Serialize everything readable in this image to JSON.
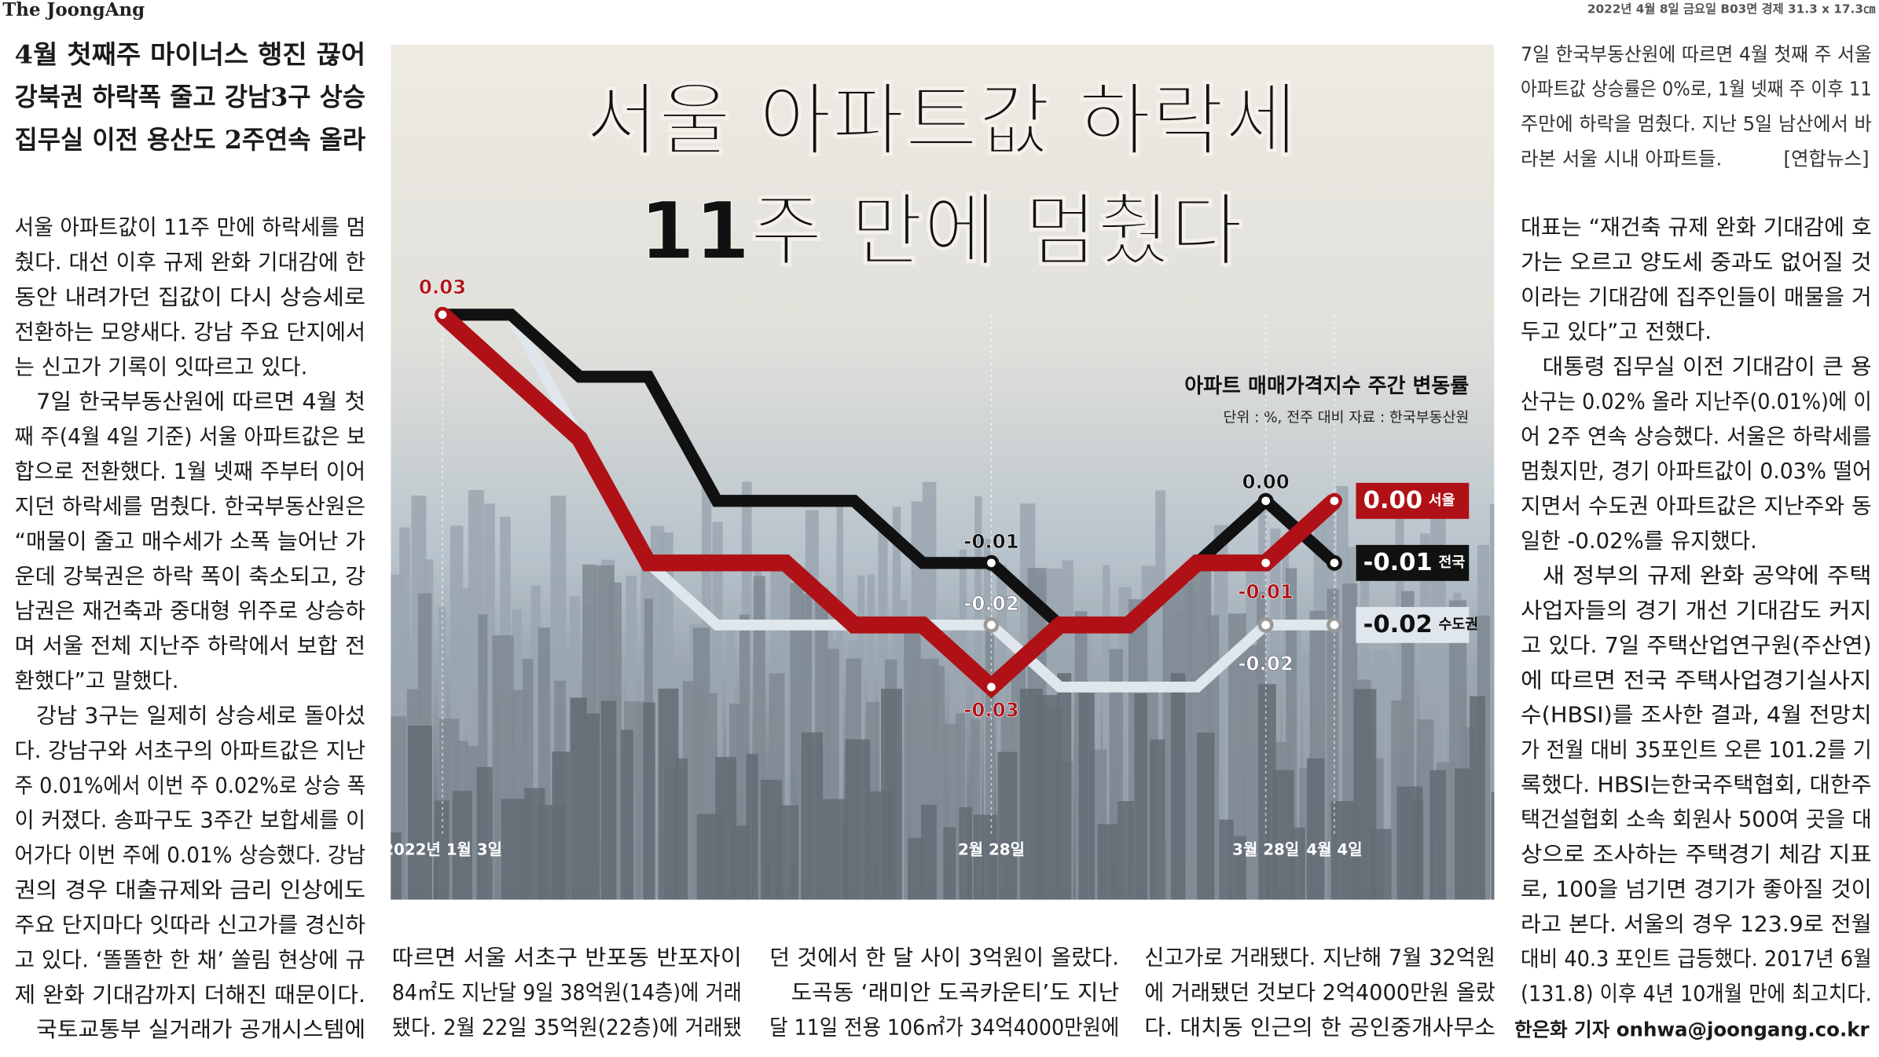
{
  "header": {
    "logo": "The JoongAng",
    "dateline": "2022년 4월 8일 금요일 B03면 경제 31.3 x 17.3㎝"
  },
  "subheads": [
    "4월 첫째주 마이너스 행진 끊어",
    "강북권 하락폭 줄고 강남3구 상승",
    "집무실 이전 용산도 2주연속 올라"
  ],
  "photo_caption": {
    "lines": [
      "7일 한국부동산원에 따르면 4월 첫째 주 서울",
      "아파트값 상승률은 0%로, 1월 넷째 주 이후 11",
      "주만에 하락을 멈췄다. 지난 5일 남산에서 바",
      "라본 서울 시내 아파트들."
    ],
    "credit": "[연합뉴스]"
  },
  "article": {
    "column1": [
      "서울 아파트값이 11주 만에 하락세를 멈",
      "췄다. 대선 이후 규제 완화 기대감에 한",
      "동안 내려가던 집값이 다시 상승세로",
      "전환하는 모양새다. 강남 주요 단지에서",
      "는 신고가 기록이 잇따르고 있다.",
      "7일 한국부동산원에 따르면 4월 첫",
      "째 주(4월 4일 기준) 서울 아파트값은 보",
      "합으로 전환했다. 1월 넷째 주부터 이어",
      "지던 하락세를 멈췄다. 한국부동산원은",
      "“매물이 줄고 매수세가 소폭 늘어난 가",
      "운데 강북권은 하락 폭이 축소되고, 강",
      "남권은 재건축과 중대형 위주로 상승하",
      "며 서울 전체 지난주 하락에서 보합 전",
      "환했다”고 말했다.",
      "강남 3구는 일제히 상승세로 돌아섰",
      "다. 강남구와 서초구의 아파트값은 지난",
      "주 0.01%에서 이번 주 0.02%로 상승 폭",
      "이 커졌다. 송파구도 3주간 보합세를 이",
      "어가다 이번 주에 0.01% 상승했다. 강남",
      "권의 경우 대출규제와 금리 인상에도",
      "주요 단지마다 잇따라 신고가를 경신하",
      "고 있다. ‘똘똘한 한 채’ 쏠림 현상에 규",
      "제 완화 기대감까지 더해진 때문이다.",
      "국토교통부 실거래가 공개시스템에"
    ],
    "column2": [
      "따르면 서울 서초구 반포동 반포자이",
      "84㎡도 지난달 9일 38억원(14층)에 거래",
      "됐다. 2월 22일 35억원(22층)에 거래됐"
    ],
    "column3": [
      "던 것에서 한 달 사이 3억원이 올랐다.",
      "도곡동 ‘래미안 도곡카운티’도 지난",
      "달 11일 전용 106㎡가 34억4000만원에"
    ],
    "column4": [
      "신고가로 거래됐다. 지난해 7월 32억원",
      "에 거래됐던 것보다 2억4000만원 올랐",
      "다. 대치동 인근의 한 공인중개사무소"
    ],
    "column5": [
      "대표는 “재건축 규제 완화 기대감에 호",
      "가는 오르고 양도세 중과도 없어질 것",
      "이라는 기대감에 집주인들이 매물을 거",
      "두고 있다”고 전했다.",
      "대통령 집무실 이전 기대감이 큰 용",
      "산구는 0.02% 올라 지난주(0.01%)에 이",
      "어 2주 연속 상승했다. 서울은 하락세를",
      "멈췄지만, 경기 아파트값이 0.03% 떨어",
      "지면서 수도권 아파트값은 지난주와 동",
      "일한 -0.02%를 유지했다.",
      "새 정부의 규제 완화 공약에 주택",
      "사업자들의 경기 개선 기대감도 커지",
      "고 있다. 7일 주택산업연구원(주산연)",
      "에 따르면 전국 주택사업경기실사지",
      "수(HBSI)를 조사한 결과, 4월 전망치",
      "가 전월 대비 35포인트 오른 101.2를 기",
      "록했다. HBSI는한국주택협회, 대한주",
      "택건설협회 소속 회원사 500여 곳을 대",
      "상으로 조사하는 주택경기 체감 지표",
      "로, 100을 넘기면 경기가 좋아질 것이",
      "라고 본다. 서울의 경우 123.9로 전월",
      "대비 40.3 포인트 급등했다. 2017년 6월",
      "(131.8) 이후 4년 10개월 만에 최고치다."
    ],
    "byline": "한은화 기자 onhwa@joongang.co.kr"
  },
  "chart_data": {
    "type": "line",
    "headline": [
      "서울 아파트값 하락세",
      "11주 만에 멈췄다"
    ],
    "title": "아파트 매매가격지수 주간 변동률",
    "subtitle": "단위 : %, 전주 대비 자료 : 한국부동산원",
    "categories": [
      "2022년 1월 3일",
      null,
      null,
      null,
      null,
      null,
      null,
      null,
      "2월 28일",
      null,
      null,
      null,
      "3월 28일",
      "4월 4일"
    ],
    "series": [
      {
        "name": "수도권",
        "color": "#dfe6ec",
        "values": [
          0.03,
          0.03,
          0.01,
          -0.01,
          -0.02,
          -0.02,
          -0.02,
          -0.02,
          -0.02,
          -0.03,
          -0.03,
          -0.03,
          -0.02,
          -0.02
        ],
        "value_labels": [
          null,
          null,
          null,
          null,
          null,
          null,
          null,
          null,
          "-0.02",
          null,
          null,
          null,
          "-0.02",
          "-0.02"
        ]
      },
      {
        "name": "전국",
        "color": "#111111",
        "values": [
          0.03,
          0.03,
          0.02,
          0.02,
          0,
          0,
          0,
          -0.01,
          -0.01,
          -0.02,
          -0.02,
          -0.01,
          0,
          -0.01
        ],
        "value_labels": [
          null,
          null,
          null,
          null,
          null,
          null,
          null,
          null,
          "-0.01",
          null,
          null,
          null,
          "0.00",
          "-0.01"
        ]
      },
      {
        "name": "서울",
        "color": "#b01116",
        "values": [
          0.03,
          0.02,
          0.01,
          -0.01,
          -0.01,
          -0.01,
          -0.02,
          -0.02,
          -0.03,
          -0.02,
          -0.02,
          -0.01,
          -0.01,
          0
        ],
        "value_labels": [
          "0.03",
          null,
          null,
          null,
          null,
          null,
          null,
          null,
          "-0.03",
          null,
          null,
          null,
          "-0.01",
          "0.00"
        ]
      }
    ]
  }
}
